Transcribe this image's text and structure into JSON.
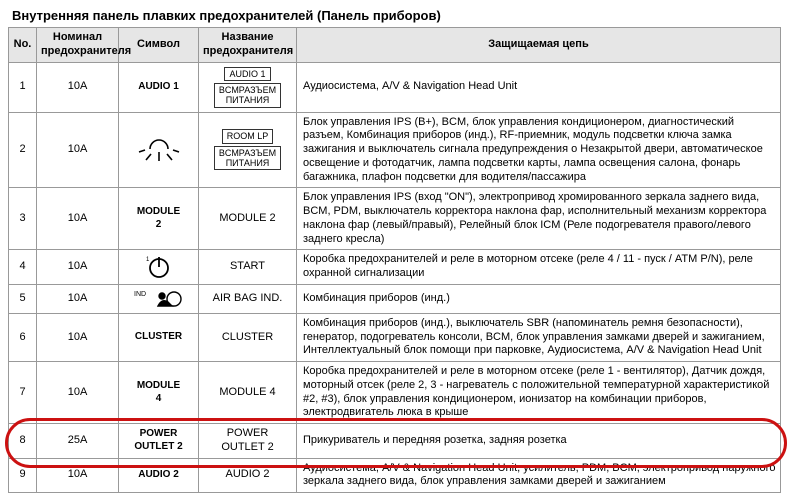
{
  "title": "Внутренняя панель плавких предохранителей (Панель приборов)",
  "headers": {
    "no": "No.",
    "nom": "Номинал\nпредохранителя",
    "sym": "Символ",
    "name": "Название\nпредохранителя",
    "desc": "Защищаемая цепь"
  },
  "rows": [
    {
      "no": "1",
      "nom": "10A",
      "sym_label": "AUDIO 1",
      "name_boxes": [
        "AUDIO 1",
        "BCMРАЗЪЕМ\nПИТАНИЯ"
      ],
      "desc": "Аудиосистема, A/V & Navigation Head Unit"
    },
    {
      "no": "2",
      "nom": "10A",
      "sym_label": "",
      "icon": "roomlamp",
      "name_boxes": [
        "ROOM LP",
        "BCMРАЗЪЕМ\nПИТАНИЯ"
      ],
      "desc": "Блок управления IPS (B+), BCM, блок управления кондиционером, диагностический разъем, Комбинация приборов (инд.), RF-приемник, модуль подсветки ключа замка зажигания и выключатель сигнала предупреждения о Незакрытой двери, автоматическое освещение и фотодатчик, лампа подсветки карты, лампа освещения салона, фонарь багажника, плафон подсветки для водителя/пассажира"
    },
    {
      "no": "3",
      "nom": "10A",
      "sym_label": "MODULE\n2",
      "name_plain": "MODULE 2",
      "desc": "Блок управления IPS (вход \"ON\"), электропривод хромированного зеркала заднего вида, BCM, PDM, выключатель корректора наклона фар, исполнительный механизм корректора наклона фар (левый/правый), Релейный блок ICM (Реле подогревателя правого/левого заднего кресла)"
    },
    {
      "no": "4",
      "nom": "10A",
      "sym_label": "",
      "icon": "start",
      "name_plain": "START",
      "desc": "Коробка предохранителей и реле в моторном отсеке (реле 4 / 11 - пуск / ATM P/N), реле охранной сигнализации"
    },
    {
      "no": "5",
      "nom": "10A",
      "sym_label": "",
      "icon": "airbag",
      "name_plain": "AIR BAG IND.",
      "desc": "Комбинация приборов (инд.)"
    },
    {
      "no": "6",
      "nom": "10A",
      "sym_label": "CLUSTER",
      "name_plain": "CLUSTER",
      "desc": "Комбинация приборов (инд.), выключатель SBR (напоминатель ремня безопасности), генератор, подогреватель консоли, BCM, блок управления замками дверей и зажиганием, Интеллектуальный блок помощи при парковке, Аудиосистема, A/V & Navigation Head Unit"
    },
    {
      "no": "7",
      "nom": "10A",
      "sym_label": "MODULE\n4",
      "name_plain": "MODULE 4",
      "desc": "Коробка предохранителей и реле в моторном отсеке (реле 1 - вентилятор), Датчик дождя, моторный отсек (реле 2, 3 - нагреватель с положительной температурной характеристикой #2, #3), блок управления кондиционером, ионизатор на комбинации приборов, электродвигатель люка в крыше"
    },
    {
      "no": "8",
      "nom": "25A",
      "sym_label": "POWER\nOUTLET 2",
      "name_plain": "POWER\nOUTLET 2",
      "desc": "Прикуриватель и передняя розетка, задняя розетка",
      "highlight": true
    },
    {
      "no": "9",
      "nom": "10A",
      "sym_label": "AUDIO 2",
      "name_plain": "AUDIO 2",
      "desc": "Аудиосистема, A/V & Navigation Head Unit, усилитель, PDM, BCM, электропривод наружного зеркала заднего вида, блок управления замками дверей и зажиганием"
    }
  ],
  "highlight": {
    "row_index": 7,
    "color": "#c11",
    "border_width": 3
  }
}
